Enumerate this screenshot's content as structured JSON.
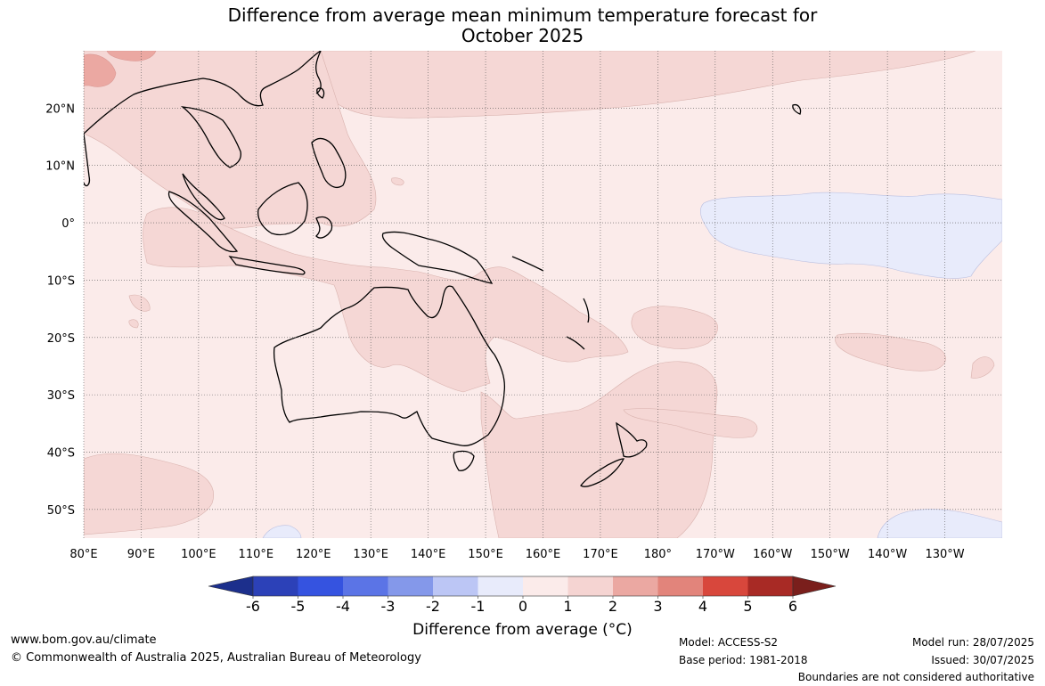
{
  "title": {
    "line1": "Difference from average mean minimum temperature forecast for",
    "line2": "October 2025"
  },
  "map": {
    "projection": "equirectangular",
    "lon_range": [
      80,
      240
    ],
    "lat_range": [
      -55,
      30
    ],
    "x_ticks": [
      {
        "lon": 80,
        "label": "80°E"
      },
      {
        "lon": 90,
        "label": "90°E"
      },
      {
        "lon": 100,
        "label": "100°E"
      },
      {
        "lon": 110,
        "label": "110°E"
      },
      {
        "lon": 120,
        "label": "120°E"
      },
      {
        "lon": 130,
        "label": "130°E"
      },
      {
        "lon": 140,
        "label": "140°E"
      },
      {
        "lon": 150,
        "label": "150°E"
      },
      {
        "lon": 160,
        "label": "160°E"
      },
      {
        "lon": 170,
        "label": "170°E"
      },
      {
        "lon": 180,
        "label": "180°"
      },
      {
        "lon": 190,
        "label": "170°W"
      },
      {
        "lon": 200,
        "label": "160°W"
      },
      {
        "lon": 210,
        "label": "150°W"
      },
      {
        "lon": 220,
        "label": "140°W"
      },
      {
        "lon": 230,
        "label": "130°W"
      }
    ],
    "y_ticks": [
      {
        "lat": 20,
        "label": "20°N"
      },
      {
        "lat": 10,
        "label": "10°N"
      },
      {
        "lat": 0,
        "label": "0°"
      },
      {
        "lat": -10,
        "label": "10°S"
      },
      {
        "lat": -20,
        "label": "20°S"
      },
      {
        "lat": -30,
        "label": "30°S"
      },
      {
        "lat": -40,
        "label": "40°S"
      },
      {
        "lat": -50,
        "label": "50°S"
      }
    ],
    "gridlines": "dotted",
    "background_class": "0 to 1",
    "background_color": "#fbebea"
  },
  "colorbar": {
    "title": "Difference from average (°C)",
    "ticks": [
      "-6",
      "-5",
      "-4",
      "-3",
      "-2",
      "-1",
      "0",
      "1",
      "2",
      "3",
      "4",
      "5",
      "6"
    ],
    "colors": [
      "#1c2f8c",
      "#2c41b8",
      "#3553e0",
      "#5b74e6",
      "#8498ea",
      "#bcc6f5",
      "#e8ebfb",
      "#fbebea",
      "#f5d4d2",
      "#eba8a2",
      "#e2847b",
      "#d8473c",
      "#a82a25",
      "#7a1f1c"
    ],
    "extend": "both"
  },
  "footer": {
    "website": "www.bom.gov.au/climate",
    "copyright": "© Commonwealth of Australia 2025, Australian Bureau of Meteorology",
    "model": "Model: ACCESS-S2",
    "base_period": "Base period: 1981-2018",
    "model_run": "Model run: 28/07/2025",
    "issued": "Issued: 30/07/2025",
    "disclaimer": "Boundaries are not considered authoritative"
  }
}
